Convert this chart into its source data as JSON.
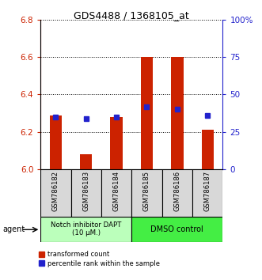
{
  "title": "GDS4488 / 1368105_at",
  "samples": [
    "GSM786182",
    "GSM786183",
    "GSM786184",
    "GSM786185",
    "GSM786186",
    "GSM786187"
  ],
  "red_values": [
    6.29,
    6.08,
    6.28,
    6.6,
    6.6,
    6.21
  ],
  "blue_values_pct": [
    35,
    34,
    35,
    42,
    40,
    36
  ],
  "ylim_left": [
    6.0,
    6.8
  ],
  "ylim_right": [
    0,
    100
  ],
  "yticks_left": [
    6.0,
    6.2,
    6.4,
    6.6,
    6.8
  ],
  "yticks_right": [
    0,
    25,
    50,
    75,
    100
  ],
  "ytick_labels_right": [
    "0",
    "25",
    "50",
    "75",
    "100%"
  ],
  "bar_bottom": 6.0,
  "red_color": "#cc2200",
  "blue_color": "#2222cc",
  "group1_label": "Notch inhibitor DAPT\n(10 μM.)",
  "group2_label": "DMSO control",
  "group1_color": "#bbffbb",
  "group2_color": "#44ee44",
  "agent_label": "agent",
  "legend_red": "transformed count",
  "legend_blue": "percentile rank within the sample",
  "bar_width": 0.4,
  "blue_marker_size": 4,
  "sample_box_color": "#d8d8d8"
}
